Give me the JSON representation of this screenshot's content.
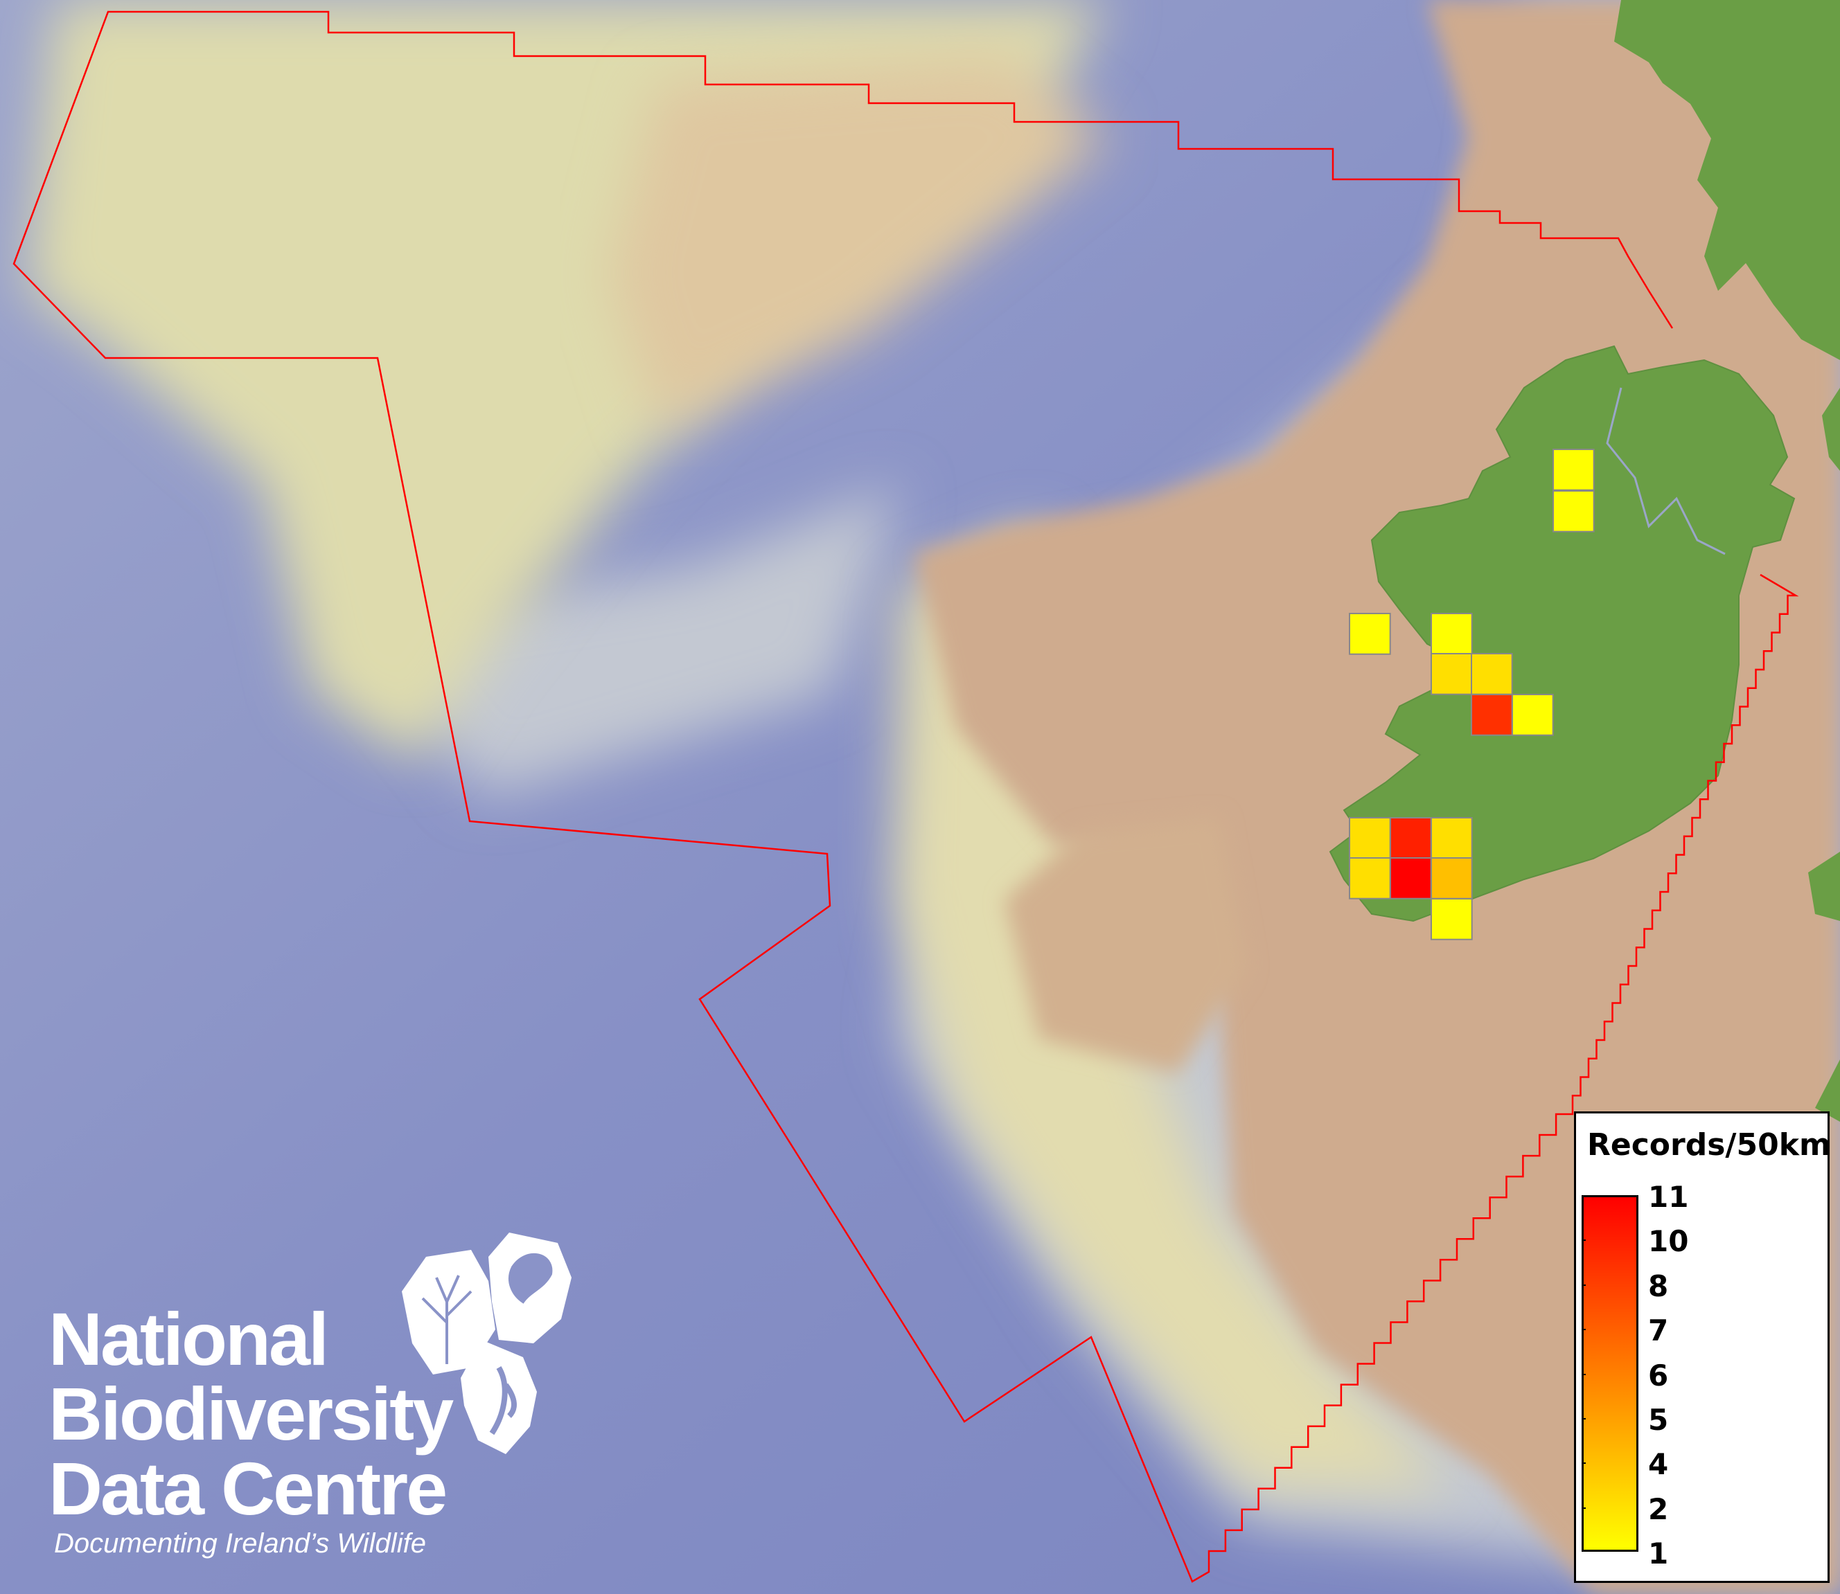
{
  "map": {
    "boundary_color": "#ff0000",
    "land_color": "#6a9e45",
    "shelf_color": "#cfab8e",
    "deep_sea_color": "#7d88c4"
  },
  "records": {
    "unit_label": "Records/50km",
    "cells": [
      {
        "value": 1
      },
      {
        "value": 1
      },
      {
        "value": 1
      },
      {
        "value": 1
      },
      {
        "value": 2
      },
      {
        "value": 2
      },
      {
        "value": 9
      },
      {
        "value": 1
      },
      {
        "value": 2
      },
      {
        "value": 10
      },
      {
        "value": 2
      },
      {
        "value": 2
      },
      {
        "value": 11
      },
      {
        "value": 4
      },
      {
        "value": 1
      }
    ]
  },
  "legend": {
    "title": "Records/50km",
    "ticks": [
      "11",
      "10",
      "8",
      "7",
      "6",
      "5",
      "4",
      "2",
      "1"
    ],
    "color_low": "#ffff00",
    "color_high": "#ff0000"
  },
  "logo": {
    "line1": "National",
    "line2": "Biodiversity",
    "line3": "Data Centre",
    "tagline": "Documenting Ireland’s Wildlife"
  }
}
